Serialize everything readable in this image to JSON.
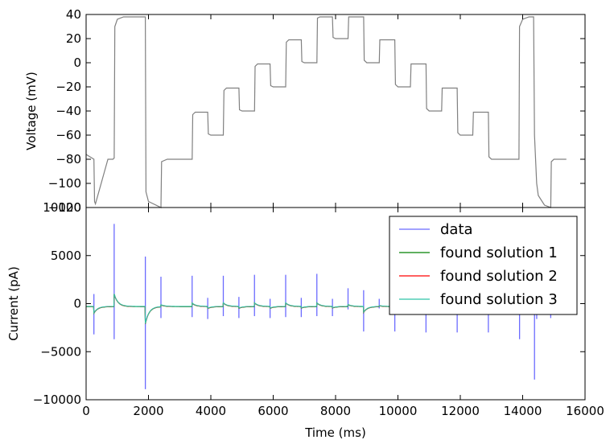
{
  "chart_data": [
    {
      "type": "line",
      "xlabel": "",
      "ylabel": "Voltage (mV)",
      "xlim": [
        0,
        16000
      ],
      "ylim": [
        -120,
        40
      ],
      "xticks": [],
      "yticks": [
        40,
        20,
        0,
        -20,
        -40,
        -60,
        -80,
        -100,
        -120
      ],
      "ytick_labels": [
        "40",
        "20",
        "0",
        "−20",
        "−40",
        "−60",
        "−80",
        "−100",
        "−120"
      ],
      "grid": false,
      "series": [
        {
          "color": "#808080",
          "points": [
            [
              0,
              -76
            ],
            [
              250,
              -80
            ],
            [
              270,
              -115
            ],
            [
              300,
              -117
            ],
            [
              700,
              -80
            ],
            [
              860,
              -80
            ],
            [
              900,
              -79
            ],
            [
              920,
              30
            ],
            [
              1000,
              36
            ],
            [
              1200,
              38
            ],
            [
              1900,
              38
            ],
            [
              1920,
              -107
            ],
            [
              2000,
              -115
            ],
            [
              2400,
              -120
            ],
            [
              2420,
              -82
            ],
            [
              2600,
              -80
            ],
            [
              3400,
              -80
            ],
            [
              3420,
              -43
            ],
            [
              3500,
              -41
            ],
            [
              3900,
              -41
            ],
            [
              3920,
              -59
            ],
            [
              4000,
              -60
            ],
            [
              4400,
              -60
            ],
            [
              4420,
              -23
            ],
            [
              4500,
              -21
            ],
            [
              4900,
              -21
            ],
            [
              4920,
              -39
            ],
            [
              5000,
              -40
            ],
            [
              5400,
              -40
            ],
            [
              5420,
              -3
            ],
            [
              5500,
              -1
            ],
            [
              5900,
              -1
            ],
            [
              5920,
              -19
            ],
            [
              6000,
              -20
            ],
            [
              6400,
              -20
            ],
            [
              6420,
              17
            ],
            [
              6500,
              19
            ],
            [
              6900,
              19
            ],
            [
              6920,
              1
            ],
            [
              7000,
              0
            ],
            [
              7400,
              0
            ],
            [
              7420,
              37
            ],
            [
              7500,
              38
            ],
            [
              7900,
              38
            ],
            [
              7920,
              21
            ],
            [
              8000,
              20
            ],
            [
              8400,
              20
            ],
            [
              8420,
              38
            ],
            [
              8500,
              38
            ],
            [
              8900,
              38
            ],
            [
              8920,
              2
            ],
            [
              9000,
              0
            ],
            [
              9400,
              0
            ],
            [
              9420,
              19
            ],
            [
              9500,
              19
            ],
            [
              9900,
              19
            ],
            [
              9920,
              -18
            ],
            [
              10000,
              -20
            ],
            [
              10400,
              -20
            ],
            [
              10420,
              -1
            ],
            [
              10500,
              -1
            ],
            [
              10900,
              -1
            ],
            [
              10920,
              -38
            ],
            [
              11000,
              -40
            ],
            [
              11400,
              -40
            ],
            [
              11420,
              -21
            ],
            [
              11500,
              -21
            ],
            [
              11900,
              -21
            ],
            [
              11920,
              -58
            ],
            [
              12000,
              -60
            ],
            [
              12400,
              -60
            ],
            [
              12420,
              -41
            ],
            [
              12500,
              -41
            ],
            [
              12900,
              -41
            ],
            [
              12920,
              -78
            ],
            [
              13000,
              -80
            ],
            [
              13880,
              -80
            ],
            [
              13900,
              30
            ],
            [
              14000,
              36
            ],
            [
              14200,
              38
            ],
            [
              14350,
              38
            ],
            [
              14380,
              -60
            ],
            [
              14450,
              -100
            ],
            [
              14500,
              -110
            ],
            [
              14700,
              -118
            ],
            [
              14900,
              -120
            ],
            [
              14920,
              -82
            ],
            [
              15000,
              -80
            ],
            [
              15400,
              -80
            ]
          ]
        }
      ]
    },
    {
      "type": "line",
      "xlabel": "Time (ms)",
      "ylabel": "Current (pA)",
      "xlim": [
        0,
        16000
      ],
      "ylim": [
        -10000,
        10000
      ],
      "xticks": [
        0,
        2000,
        4000,
        6000,
        8000,
        10000,
        12000,
        14000,
        16000
      ],
      "xtick_labels": [
        "0",
        "2000",
        "4000",
        "6000",
        "8000",
        "10000",
        "12000",
        "14000",
        "16000"
      ],
      "yticks": [
        10000,
        5000,
        0,
        -5000,
        -10000
      ],
      "ytick_labels": [
        "10000",
        "5000",
        "0",
        "−5000",
        "−10000"
      ],
      "grid": false,
      "legend_position": "top-right",
      "series": [
        {
          "name": "data",
          "color": "#6b6bff",
          "spikes": [
            [
              250,
              1000,
              -3200
            ],
            [
              900,
              8300,
              -3700
            ],
            [
              1900,
              4900,
              -8900
            ],
            [
              2400,
              2800,
              -1500
            ],
            [
              3400,
              2900,
              -1400
            ],
            [
              3900,
              600,
              -1600
            ],
            [
              4400,
              2900,
              -1300
            ],
            [
              4900,
              700,
              -1500
            ],
            [
              5400,
              3000,
              -1300
            ],
            [
              5900,
              500,
              -1500
            ],
            [
              6400,
              3000,
              -1400
            ],
            [
              6900,
              600,
              -1400
            ],
            [
              7400,
              3100,
              -1300
            ],
            [
              7900,
              500,
              -1300
            ],
            [
              8400,
              1600,
              -600
            ],
            [
              8900,
              1400,
              -2900
            ],
            [
              9400,
              500,
              -500
            ],
            [
              9900,
              300,
              -2900
            ],
            [
              10900,
              200,
              -3000
            ],
            [
              11900,
              200,
              -3000
            ],
            [
              12900,
              200,
              -3000
            ],
            [
              13900,
              300,
              -3700
            ],
            [
              14380,
              1100,
              -7900
            ],
            [
              14450,
              200,
              -1600
            ],
            [
              14900,
              200,
              -1500
            ]
          ]
        },
        {
          "name": "found solution 1",
          "color": "#008000"
        },
        {
          "name": "found solution 2",
          "color": "#ff0000"
        },
        {
          "name": "found solution 3",
          "color": "#2ec4a8"
        }
      ]
    }
  ]
}
